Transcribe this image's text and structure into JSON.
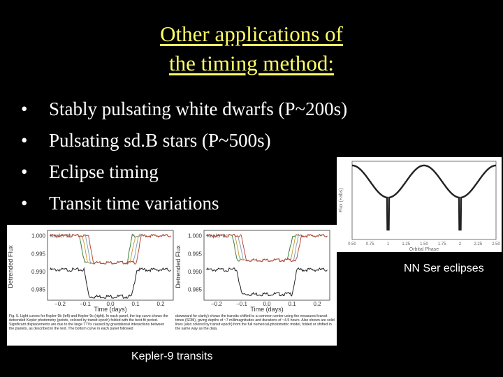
{
  "slide": {
    "title_line1": "Other applications of",
    "title_line2": "the timing method:",
    "bullets": [
      "Stably pulsating white dwarfs (P~200s)",
      "Pulsating sd.B stars (P~500s)",
      "Eclipse timing",
      "Transit time variations"
    ],
    "colors": {
      "title": "#ffff66",
      "background": "#000000",
      "text": "#ffffff"
    }
  },
  "nnser_figure": {
    "caption": "NN Ser eclipses",
    "ylabel": "Flux (+abs)",
    "xlabel": "Orbital Phase",
    "xticks": [
      "0.50",
      "0.75",
      "1",
      "1.25",
      "1.50",
      "1.75",
      "2",
      "2.25",
      "2.50"
    ]
  },
  "kepler_figure": {
    "caption": "Kepler-9 transits",
    "panels": [
      {
        "label": "Kepler-9b"
      },
      {
        "label": "Kepler-9c"
      }
    ],
    "ylabel": "Detrended Flux",
    "xlabel": "Time (days)",
    "yticks": [
      "1.000",
      "0.995",
      "0.990",
      "0.985"
    ],
    "xticks": [
      "−0.2",
      "−0.1",
      "0.0",
      "0.1",
      "0.2"
    ],
    "caption_text_left": "Fig. 5. Light curves for Kepler-9b (left) and Kepler-9c (right). In each panel, the top curve shows the detrended Kepler photometry (points, colored by transit epoch) folded with the best-fit period. Significant displacements are due to the large TTVs caused by gravitational interactions between the planets, as described in the text. The bottom curve in each panel followed",
    "caption_text_right": "downward for clarity) shows the transits shifted to a common center using the measured transit times (SOM), giving depths of ~7 millimagnitudes and durations of ~4.5 hours. Also shown are solid lines (also colored by transit epoch) from the full numerical-photometric model, folded or shifted in the same way as the data."
  }
}
